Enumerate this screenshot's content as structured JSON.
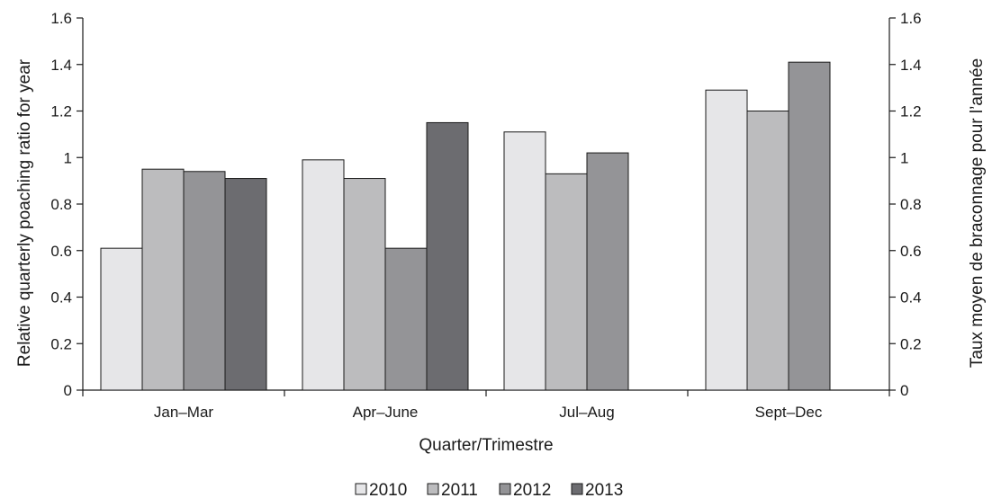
{
  "chart_data": {
    "type": "bar",
    "categories": [
      "Jan–Mar",
      "Apr–June",
      "Jul–Aug",
      "Sept–Dec"
    ],
    "series": [
      {
        "name": "2010",
        "color": "#e6e6e8",
        "values": [
          0.61,
          0.99,
          1.11,
          1.29
        ]
      },
      {
        "name": "2011",
        "color": "#bcbcbe",
        "values": [
          0.95,
          0.91,
          0.93,
          1.2
        ]
      },
      {
        "name": "2012",
        "color": "#949497",
        "values": [
          0.94,
          0.61,
          1.02,
          1.41
        ]
      },
      {
        "name": "2013",
        "color": "#6c6c70",
        "values": [
          0.91,
          1.15,
          null,
          null
        ]
      }
    ],
    "xlabel": "Quarter/Trimestre",
    "ylabel": "Relative quarterly poaching ratio for year",
    "ylabel_right": "Taux moyen de braconnage pour l’année",
    "ylim": [
      0,
      1.6
    ],
    "yticks": [
      0,
      0.2,
      0.4,
      0.6,
      0.8,
      1,
      1.2,
      1.4,
      1.6
    ],
    "ytick_labels": [
      "0",
      "0.2",
      "0.4",
      "0.6",
      "0.8",
      "1",
      "1.2",
      "1.4",
      "1.6"
    ],
    "grid": false,
    "legend_position": "bottom-center"
  }
}
